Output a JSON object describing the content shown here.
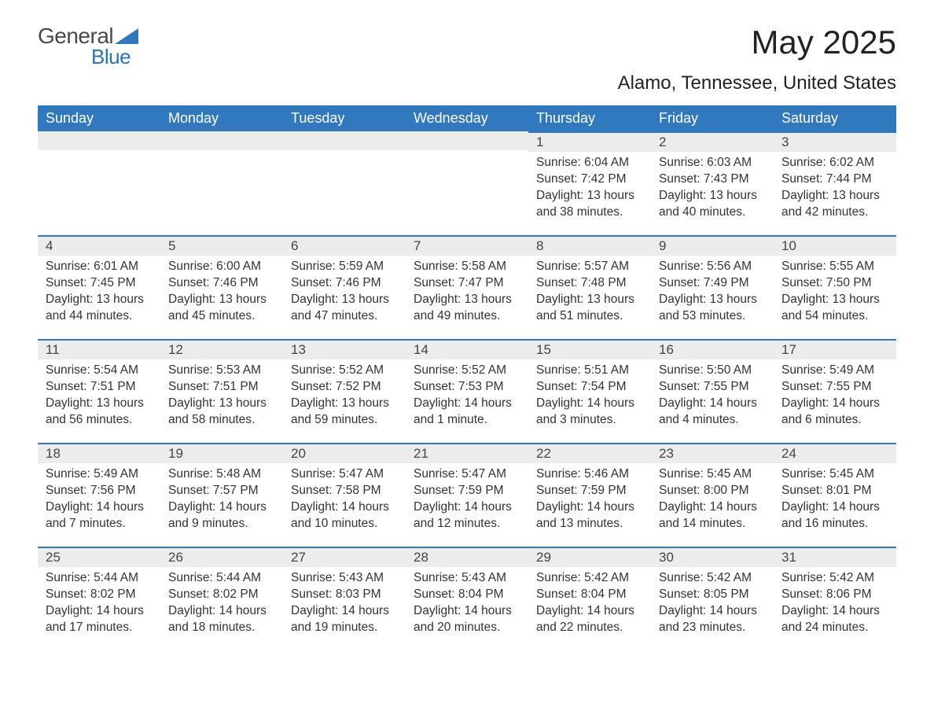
{
  "brand": {
    "part1": "General",
    "part2": "Blue"
  },
  "title": "May 2025",
  "location": "Alamo, Tennessee, United States",
  "colors": {
    "header_bg": "#3079be",
    "header_fg": "#ffffff",
    "daynum_bg": "#ececec",
    "border_top": "#3079be",
    "text": "#333333",
    "logo_gray": "#4a4a4a",
    "logo_blue": "#2a73b8"
  },
  "week_days": [
    "Sunday",
    "Monday",
    "Tuesday",
    "Wednesday",
    "Thursday",
    "Friday",
    "Saturday"
  ],
  "weeks": [
    [
      null,
      null,
      null,
      null,
      {
        "n": "1",
        "sr": "Sunrise: 6:04 AM",
        "ss": "Sunset: 7:42 PM",
        "d1": "Daylight: 13 hours",
        "d2": "and 38 minutes."
      },
      {
        "n": "2",
        "sr": "Sunrise: 6:03 AM",
        "ss": "Sunset: 7:43 PM",
        "d1": "Daylight: 13 hours",
        "d2": "and 40 minutes."
      },
      {
        "n": "3",
        "sr": "Sunrise: 6:02 AM",
        "ss": "Sunset: 7:44 PM",
        "d1": "Daylight: 13 hours",
        "d2": "and 42 minutes."
      }
    ],
    [
      {
        "n": "4",
        "sr": "Sunrise: 6:01 AM",
        "ss": "Sunset: 7:45 PM",
        "d1": "Daylight: 13 hours",
        "d2": "and 44 minutes."
      },
      {
        "n": "5",
        "sr": "Sunrise: 6:00 AM",
        "ss": "Sunset: 7:46 PM",
        "d1": "Daylight: 13 hours",
        "d2": "and 45 minutes."
      },
      {
        "n": "6",
        "sr": "Sunrise: 5:59 AM",
        "ss": "Sunset: 7:46 PM",
        "d1": "Daylight: 13 hours",
        "d2": "and 47 minutes."
      },
      {
        "n": "7",
        "sr": "Sunrise: 5:58 AM",
        "ss": "Sunset: 7:47 PM",
        "d1": "Daylight: 13 hours",
        "d2": "and 49 minutes."
      },
      {
        "n": "8",
        "sr": "Sunrise: 5:57 AM",
        "ss": "Sunset: 7:48 PM",
        "d1": "Daylight: 13 hours",
        "d2": "and 51 minutes."
      },
      {
        "n": "9",
        "sr": "Sunrise: 5:56 AM",
        "ss": "Sunset: 7:49 PM",
        "d1": "Daylight: 13 hours",
        "d2": "and 53 minutes."
      },
      {
        "n": "10",
        "sr": "Sunrise: 5:55 AM",
        "ss": "Sunset: 7:50 PM",
        "d1": "Daylight: 13 hours",
        "d2": "and 54 minutes."
      }
    ],
    [
      {
        "n": "11",
        "sr": "Sunrise: 5:54 AM",
        "ss": "Sunset: 7:51 PM",
        "d1": "Daylight: 13 hours",
        "d2": "and 56 minutes."
      },
      {
        "n": "12",
        "sr": "Sunrise: 5:53 AM",
        "ss": "Sunset: 7:51 PM",
        "d1": "Daylight: 13 hours",
        "d2": "and 58 minutes."
      },
      {
        "n": "13",
        "sr": "Sunrise: 5:52 AM",
        "ss": "Sunset: 7:52 PM",
        "d1": "Daylight: 13 hours",
        "d2": "and 59 minutes."
      },
      {
        "n": "14",
        "sr": "Sunrise: 5:52 AM",
        "ss": "Sunset: 7:53 PM",
        "d1": "Daylight: 14 hours",
        "d2": "and 1 minute."
      },
      {
        "n": "15",
        "sr": "Sunrise: 5:51 AM",
        "ss": "Sunset: 7:54 PM",
        "d1": "Daylight: 14 hours",
        "d2": "and 3 minutes."
      },
      {
        "n": "16",
        "sr": "Sunrise: 5:50 AM",
        "ss": "Sunset: 7:55 PM",
        "d1": "Daylight: 14 hours",
        "d2": "and 4 minutes."
      },
      {
        "n": "17",
        "sr": "Sunrise: 5:49 AM",
        "ss": "Sunset: 7:55 PM",
        "d1": "Daylight: 14 hours",
        "d2": "and 6 minutes."
      }
    ],
    [
      {
        "n": "18",
        "sr": "Sunrise: 5:49 AM",
        "ss": "Sunset: 7:56 PM",
        "d1": "Daylight: 14 hours",
        "d2": "and 7 minutes."
      },
      {
        "n": "19",
        "sr": "Sunrise: 5:48 AM",
        "ss": "Sunset: 7:57 PM",
        "d1": "Daylight: 14 hours",
        "d2": "and 9 minutes."
      },
      {
        "n": "20",
        "sr": "Sunrise: 5:47 AM",
        "ss": "Sunset: 7:58 PM",
        "d1": "Daylight: 14 hours",
        "d2": "and 10 minutes."
      },
      {
        "n": "21",
        "sr": "Sunrise: 5:47 AM",
        "ss": "Sunset: 7:59 PM",
        "d1": "Daylight: 14 hours",
        "d2": "and 12 minutes."
      },
      {
        "n": "22",
        "sr": "Sunrise: 5:46 AM",
        "ss": "Sunset: 7:59 PM",
        "d1": "Daylight: 14 hours",
        "d2": "and 13 minutes."
      },
      {
        "n": "23",
        "sr": "Sunrise: 5:45 AM",
        "ss": "Sunset: 8:00 PM",
        "d1": "Daylight: 14 hours",
        "d2": "and 14 minutes."
      },
      {
        "n": "24",
        "sr": "Sunrise: 5:45 AM",
        "ss": "Sunset: 8:01 PM",
        "d1": "Daylight: 14 hours",
        "d2": "and 16 minutes."
      }
    ],
    [
      {
        "n": "25",
        "sr": "Sunrise: 5:44 AM",
        "ss": "Sunset: 8:02 PM",
        "d1": "Daylight: 14 hours",
        "d2": "and 17 minutes."
      },
      {
        "n": "26",
        "sr": "Sunrise: 5:44 AM",
        "ss": "Sunset: 8:02 PM",
        "d1": "Daylight: 14 hours",
        "d2": "and 18 minutes."
      },
      {
        "n": "27",
        "sr": "Sunrise: 5:43 AM",
        "ss": "Sunset: 8:03 PM",
        "d1": "Daylight: 14 hours",
        "d2": "and 19 minutes."
      },
      {
        "n": "28",
        "sr": "Sunrise: 5:43 AM",
        "ss": "Sunset: 8:04 PM",
        "d1": "Daylight: 14 hours",
        "d2": "and 20 minutes."
      },
      {
        "n": "29",
        "sr": "Sunrise: 5:42 AM",
        "ss": "Sunset: 8:04 PM",
        "d1": "Daylight: 14 hours",
        "d2": "and 22 minutes."
      },
      {
        "n": "30",
        "sr": "Sunrise: 5:42 AM",
        "ss": "Sunset: 8:05 PM",
        "d1": "Daylight: 14 hours",
        "d2": "and 23 minutes."
      },
      {
        "n": "31",
        "sr": "Sunrise: 5:42 AM",
        "ss": "Sunset: 8:06 PM",
        "d1": "Daylight: 14 hours",
        "d2": "and 24 minutes."
      }
    ]
  ]
}
